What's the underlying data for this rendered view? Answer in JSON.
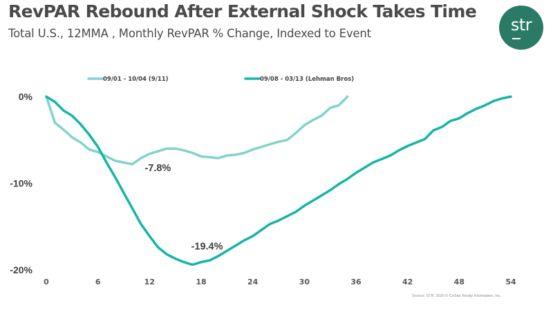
{
  "header": {
    "title": "RevPAR Rebound After External Shock Takes Time",
    "subtitle": "Total U.S., 12MMA , Monthly RevPAR % Change, Indexed to Event"
  },
  "logo": {
    "text": "str",
    "icon": "str-logo-icon",
    "color": "#2a7a66"
  },
  "source": "Source: STR. 2020 © CoStar Realty Information, Inc.",
  "chart_data": {
    "type": "line",
    "title": "RevPAR Rebound After External Shock Takes Time",
    "subtitle": "Total U.S., 12MMA , Monthly RevPAR % Change, Indexed to Event",
    "xlabel": "",
    "ylabel": "",
    "xlim": [
      0,
      54
    ],
    "ylim": [
      -20,
      0
    ],
    "x_ticks": [
      0,
      6,
      12,
      18,
      24,
      30,
      36,
      42,
      48,
      54
    ],
    "x_tick_labels": [
      "0",
      "6",
      "12",
      "18",
      "24",
      "30",
      "36",
      "42",
      "48",
      "54"
    ],
    "y_ticks": [
      0,
      -10,
      -20
    ],
    "y_tick_labels": [
      "0%",
      "-10%",
      "-20%"
    ],
    "grid": false,
    "legend_position": "top",
    "series": [
      {
        "name": "09/01 - 10/04 (9/11)",
        "color": "#7fd4cb",
        "x": [
          0,
          1,
          2,
          3,
          4,
          5,
          6,
          7,
          8,
          9,
          10,
          11,
          12,
          13,
          14,
          15,
          16,
          17,
          18,
          19,
          20,
          21,
          22,
          23,
          24,
          25,
          26,
          27,
          28,
          29,
          30,
          31,
          32,
          33,
          34,
          35
        ],
        "values": [
          0,
          -3.0,
          -3.8,
          -4.7,
          -5.3,
          -6.1,
          -6.4,
          -6.9,
          -7.4,
          -7.6,
          -7.8,
          -7.1,
          -6.6,
          -6.3,
          -6.0,
          -6.0,
          -6.2,
          -6.5,
          -6.9,
          -7.0,
          -7.1,
          -6.8,
          -6.7,
          -6.5,
          -6.1,
          -5.8,
          -5.5,
          -5.2,
          -5.0,
          -4.2,
          -3.3,
          -2.7,
          -2.2,
          -1.3,
          -1.0,
          0
        ]
      },
      {
        "name": "09/08 - 03/13 (Lehman Bros)",
        "color": "#13b5a6",
        "x": [
          0,
          1,
          2,
          3,
          4,
          5,
          6,
          7,
          8,
          9,
          10,
          11,
          12,
          13,
          14,
          15,
          16,
          17,
          18,
          19,
          20,
          21,
          22,
          23,
          24,
          25,
          26,
          27,
          28,
          29,
          30,
          31,
          32,
          33,
          34,
          35,
          36,
          37,
          38,
          39,
          40,
          41,
          42,
          43,
          44,
          45,
          46,
          47,
          48,
          49,
          50,
          51,
          52,
          53,
          54
        ],
        "values": [
          0,
          -0.6,
          -1.6,
          -2.2,
          -3.2,
          -4.4,
          -5.8,
          -7.6,
          -9.3,
          -11.1,
          -12.9,
          -14.7,
          -16.1,
          -17.4,
          -18.2,
          -18.7,
          -19.1,
          -19.4,
          -19.1,
          -18.9,
          -18.4,
          -17.8,
          -17.2,
          -16.6,
          -16.1,
          -15.4,
          -14.7,
          -14.3,
          -13.8,
          -13.3,
          -12.6,
          -12.0,
          -11.4,
          -10.8,
          -10.1,
          -9.5,
          -8.8,
          -8.2,
          -7.6,
          -7.2,
          -6.8,
          -6.2,
          -5.7,
          -5.3,
          -4.9,
          -3.9,
          -3.5,
          -2.8,
          -2.5,
          -1.9,
          -1.4,
          -1.0,
          -0.5,
          -0.2,
          0
        ]
      }
    ],
    "annotations": [
      {
        "text": "-7.8%",
        "series": 0,
        "x": 10,
        "y": -7.8
      },
      {
        "text": "-19.4%",
        "series": 1,
        "x": 17,
        "y": -19.4
      }
    ]
  }
}
